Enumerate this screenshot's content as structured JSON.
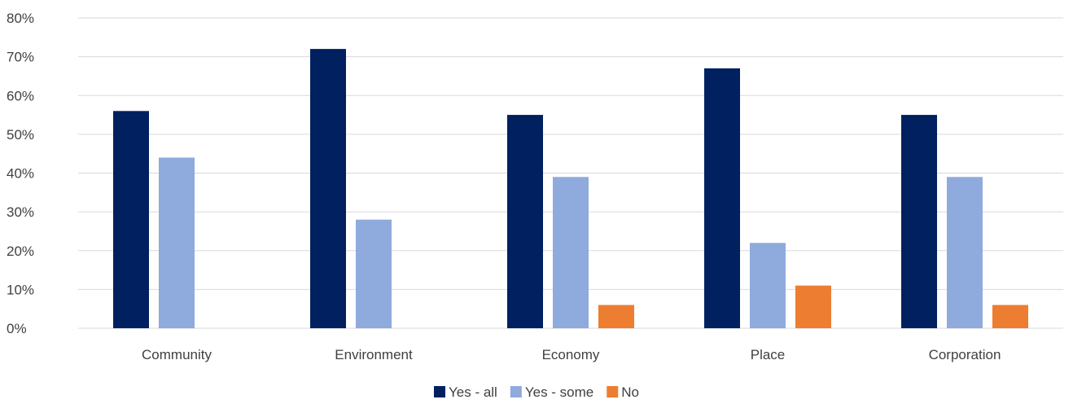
{
  "chart_data": {
    "type": "bar",
    "title": "",
    "xlabel": "",
    "ylabel": "",
    "categories": [
      "Community",
      "Environment",
      "Economy",
      "Place",
      "Corporation"
    ],
    "series": [
      {
        "name": "Yes - all",
        "color": "#002060",
        "values": [
          56,
          72,
          55,
          67,
          55
        ]
      },
      {
        "name": "Yes - some",
        "color": "#8faadc",
        "values": [
          44,
          28,
          39,
          22,
          39
        ]
      },
      {
        "name": "No",
        "color": "#ed7d31",
        "values": [
          0,
          0,
          6,
          11,
          6
        ]
      }
    ],
    "ylim": [
      0,
      80
    ],
    "yticks": [
      "0%",
      "10%",
      "20%",
      "30%",
      "40%",
      "50%",
      "60%",
      "70%",
      "80%"
    ],
    "grid": true,
    "legend": "bottom-center"
  }
}
